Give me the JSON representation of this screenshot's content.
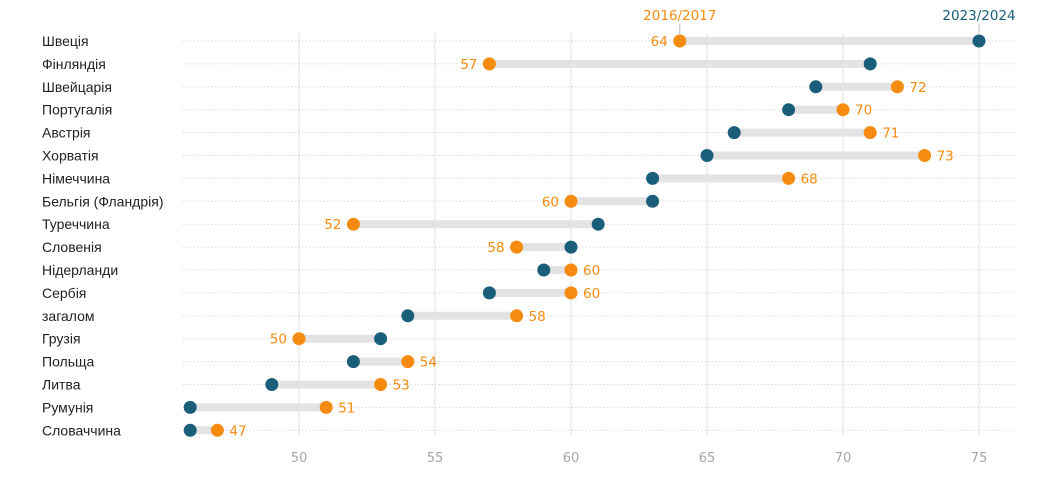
{
  "chart_data": {
    "type": "dumbbell",
    "title": "",
    "xlabel": "",
    "ylabel": "",
    "xlim": [
      46,
      76
    ],
    "x_ticks": [
      50,
      55,
      60,
      65,
      70,
      75
    ],
    "grid": true,
    "legend_placement": "top",
    "series": [
      {
        "name": "2016/2017",
        "color": "#f68b0f",
        "label_values": true
      },
      {
        "name": "2023/2024",
        "color": "#1a5e7a",
        "label_values": false
      }
    ],
    "connector_color": "#e3e3e3",
    "categories": [
      "Швеція",
      "Фінляндія",
      "Швейцарія",
      "Португалія",
      "Австрія",
      "Хорватія",
      "Німеччина",
      "Бельгія (Фландрія)",
      "Туреччина",
      "Словенія",
      "Нідерланди",
      "Сербія",
      "загалом",
      "Грузія",
      "Польща",
      "Литва",
      "Румунія",
      "Словаччина"
    ],
    "values_2016_2017": [
      64,
      57,
      72,
      70,
      71,
      73,
      68,
      60,
      52,
      58,
      60,
      60,
      58,
      50,
      54,
      53,
      51,
      47
    ],
    "values_2023_2024": [
      75,
      71,
      69,
      68,
      66,
      65,
      63,
      63,
      61,
      60,
      59,
      57,
      54,
      53,
      52,
      49,
      46,
      46
    ]
  }
}
